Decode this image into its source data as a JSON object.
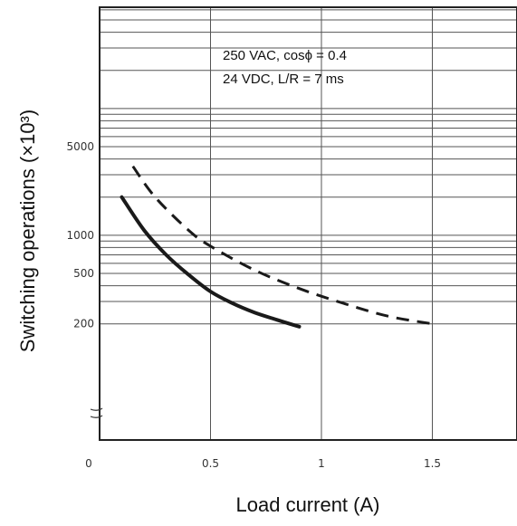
{
  "chart_data": {
    "type": "line",
    "title": "",
    "xlabel": "Load current (A)",
    "ylabel": "Switching operations (×10³)",
    "annotations": [
      "250 VAC, cosϕ = 0.4",
      "24 VDC, L/R = 7 ms"
    ],
    "x_ticks": [
      0,
      0.5,
      1,
      1.5
    ],
    "x_tick_labels": [
      "0",
      "0.5",
      "1",
      "1.5"
    ],
    "xlim": [
      0,
      1.8
    ],
    "y_scale": "log",
    "y_ticks": [
      200,
      500,
      1000,
      5000
    ],
    "y_tick_labels": [
      "200",
      "500",
      "1000",
      "5000"
    ],
    "ylim": [
      150,
      20000
    ],
    "grid": true,
    "series": [
      {
        "style": "solid",
        "x": [
          0.1,
          0.2,
          0.3,
          0.4,
          0.5,
          0.6,
          0.7,
          0.8,
          0.9
        ],
        "y": [
          2000,
          1100,
          700,
          490,
          360,
          290,
          245,
          215,
          190
        ]
      },
      {
        "style": "dashed",
        "x": [
          0.15,
          0.25,
          0.4,
          0.5,
          0.7,
          0.9,
          1.1,
          1.3,
          1.5
        ],
        "y": [
          3500,
          2000,
          1100,
          820,
          530,
          380,
          290,
          230,
          200
        ]
      }
    ]
  }
}
